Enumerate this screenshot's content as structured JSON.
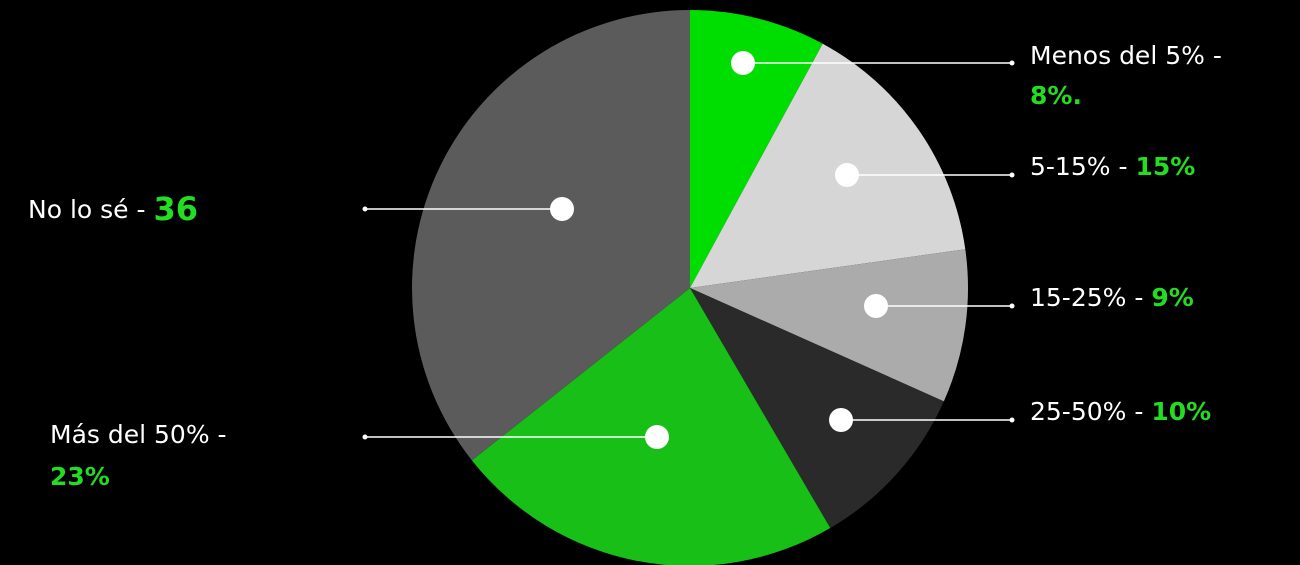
{
  "chart_data": {
    "type": "pie",
    "categories": [
      "Menos del 5% -",
      "5-15% -",
      "15-25% -",
      "25-50% -",
      "Más del 50% -",
      "No lo sé -"
    ],
    "values": [
      8,
      15,
      9,
      10,
      23,
      36
    ],
    "value_labels": [
      "8%.",
      "15%",
      "9%",
      "10%",
      "23%",
      "36"
    ],
    "colors": [
      "#00dd00",
      "#d6d6d6",
      "#ababab",
      "#2a2a2a",
      "#17bf17",
      "#5b5b5b"
    ]
  }
}
